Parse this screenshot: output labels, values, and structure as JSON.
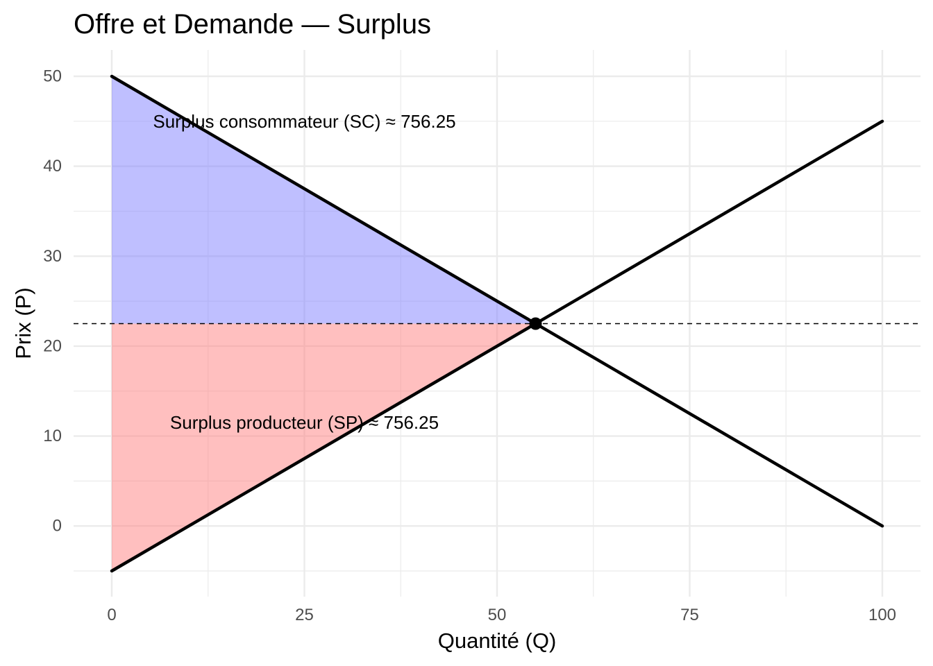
{
  "chart_data": {
    "type": "line",
    "title": "Offre et Demande — Surplus",
    "xlabel": "Quantité (Q)",
    "ylabel": "Prix (P)",
    "xlim": [
      0,
      100
    ],
    "ylim": [
      -5,
      50
    ],
    "x_ticks": [
      0,
      25,
      50,
      75,
      100
    ],
    "y_ticks": [
      0,
      10,
      20,
      30,
      40,
      50
    ],
    "grid": true,
    "series": [
      {
        "x": [
          0,
          100
        ],
        "y": [
          50,
          0
        ]
      },
      {
        "x": [
          0,
          100
        ],
        "y": [
          -5,
          45
        ]
      }
    ],
    "equilibrium": {
      "q": 55,
      "p": 22.5
    },
    "areas": [
      {
        "polygon": [
          [
            0,
            50
          ],
          [
            55,
            22.5
          ],
          [
            0,
            22.5
          ]
        ],
        "color": "#8080ff"
      },
      {
        "polygon": [
          [
            0,
            22.5
          ],
          [
            55,
            22.5
          ],
          [
            0,
            -5
          ]
        ],
        "color": "#ff8080"
      }
    ],
    "hline": {
      "y": 22.5,
      "style": "dashed"
    },
    "annotations": [
      {
        "text": "Surplus consommateur (SC) ≈ 756.25",
        "x": 25,
        "y": 45
      },
      {
        "text": "Surplus producteur (SP) ≈ 756.25",
        "x": 25,
        "y": 11.5
      }
    ],
    "colors": {
      "line": "#000000",
      "consumer_surplus": "#8080ff",
      "producer_surplus": "#ff8080",
      "grid": "#ebebeb"
    }
  }
}
